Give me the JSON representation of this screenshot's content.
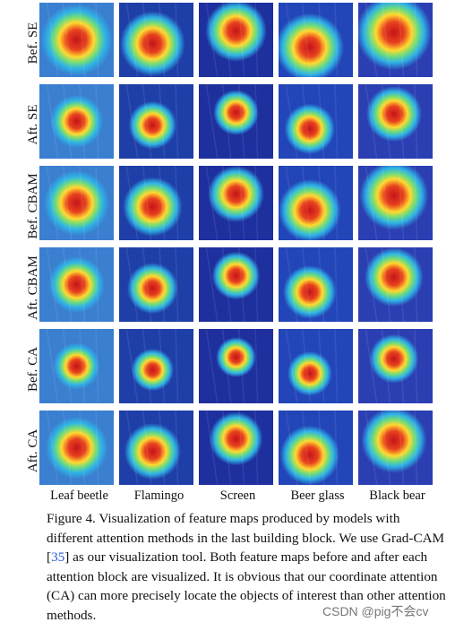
{
  "figure": {
    "row_labels": [
      "Bef. SE",
      "Aft. SE",
      "Bef. CBAM",
      "Aft. CBAM",
      "Bef. CA",
      "Aft. CA"
    ],
    "column_labels": [
      "Leaf beetle",
      "Flamingo",
      "Screen",
      "Beer glass",
      "Black bear"
    ],
    "caption_parts": {
      "before_ref": "Figure 4. Visualization of feature maps produced by models with different attention methods in the last building block.  We use Grad-CAM [",
      "ref": "35",
      "after_ref": "] as our visualization tool.  Both feature maps before and after each attention block are visualized.  It is obvious that our coordinate attention (CA) can more precisely locate the objects of interest than other attention methods."
    },
    "colors": {
      "heat_high": "#d7191c",
      "heat_mid": "#ffd92f",
      "heat_low": "#1a2fbf",
      "link": "#2a5bd7"
    }
  },
  "watermark": "CSDN @pig不会cv"
}
